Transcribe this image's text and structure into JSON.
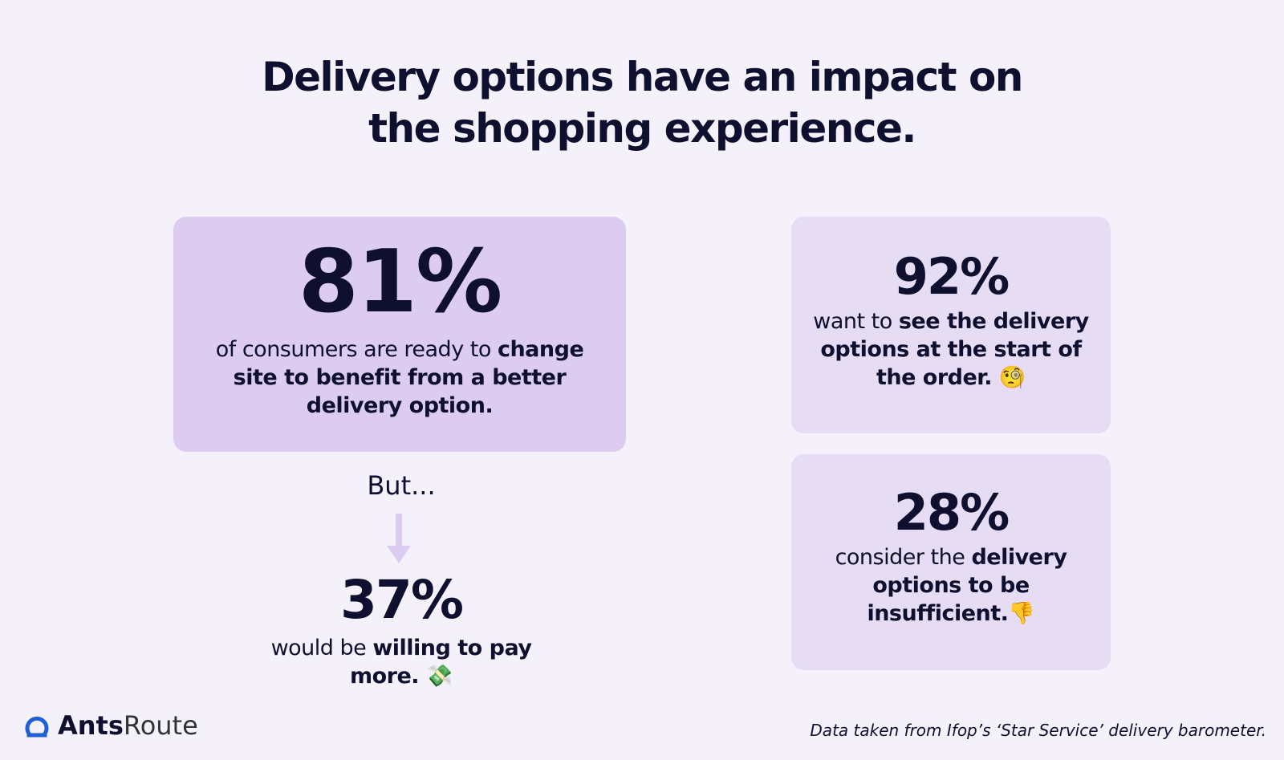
{
  "header": {
    "title_line1": "Delivery options have an impact on",
    "title_line2": "the shopping experience."
  },
  "stats": [
    {
      "figure": "81%",
      "text": "of consumers are ready to ",
      "bold": "change site to benefit from a better delivery option."
    },
    {
      "figure": "92%",
      "text": "want to ",
      "bold": "see the delivery options at the start of the order. 🧐"
    },
    {
      "figure": "28%",
      "text": "consider the ",
      "bold": "delivery options to be insufficient.👎"
    },
    {
      "figure": "37%",
      "text": "would be ",
      "bold": "willing to pay more. 💸"
    }
  ],
  "connector": "But...",
  "footer": {
    "logo_bold": "Ants",
    "logo_light": "Route",
    "source": "Data taken from Ifop’s ‘Star Service’ delivery barometer."
  }
}
